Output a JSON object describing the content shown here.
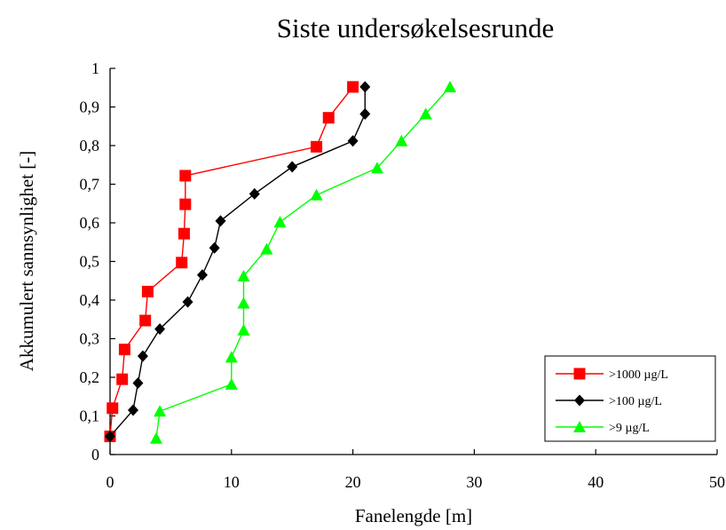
{
  "chart_data": {
    "type": "line",
    "title": "Siste undersøkelsesrunde",
    "xlabel": "Fanelengde [m]",
    "ylabel": "Akkumulert sannsynlighet [-]",
    "xlim": [
      0,
      50
    ],
    "ylim": [
      0,
      1
    ],
    "x_ticks": [
      "0",
      "10",
      "20",
      "30",
      "40",
      "50"
    ],
    "y_ticks": [
      "0",
      "0,1",
      "0,2",
      "0,3",
      "0,4",
      "0,5",
      "0,6",
      "0,7",
      "0,8",
      "0,9",
      "1"
    ],
    "grid": false,
    "legend_position": "bottom-right",
    "series": [
      {
        "name": ">1000 µg/L",
        "color": "#ff0000",
        "marker": "square",
        "points": [
          [
            0,
            0.047
          ],
          [
            0.2,
            0.12
          ],
          [
            1,
            0.195
          ],
          [
            1.2,
            0.272
          ],
          [
            2.9,
            0.347
          ],
          [
            3.1,
            0.422
          ],
          [
            5.9,
            0.497
          ],
          [
            6.1,
            0.572
          ],
          [
            6.2,
            0.648
          ],
          [
            6.2,
            0.722
          ],
          [
            17,
            0.797
          ],
          [
            18,
            0.872
          ],
          [
            20,
            0.952
          ]
        ]
      },
      {
        "name": ">100 µg/L",
        "color": "#000000",
        "marker": "diamond",
        "points": [
          [
            0,
            0.047
          ],
          [
            1.9,
            0.115
          ],
          [
            2.3,
            0.185
          ],
          [
            2.7,
            0.255
          ],
          [
            4.1,
            0.325
          ],
          [
            6.4,
            0.395
          ],
          [
            7.6,
            0.465
          ],
          [
            8.6,
            0.535
          ],
          [
            9.1,
            0.605
          ],
          [
            11.9,
            0.675
          ],
          [
            15,
            0.745
          ],
          [
            20,
            0.812
          ],
          [
            21,
            0.882
          ],
          [
            21,
            0.952
          ]
        ]
      },
      {
        "name": ">9 µg/L",
        "color": "#00ff00",
        "marker": "triangle",
        "points": [
          [
            3.8,
            0.042
          ],
          [
            4.1,
            0.112
          ],
          [
            10,
            0.182
          ],
          [
            10,
            0.252
          ],
          [
            11,
            0.322
          ],
          [
            11,
            0.392
          ],
          [
            11,
            0.462
          ],
          [
            12.9,
            0.532
          ],
          [
            14,
            0.602
          ],
          [
            17,
            0.672
          ],
          [
            22,
            0.742
          ],
          [
            24,
            0.812
          ],
          [
            26,
            0.882
          ],
          [
            28,
            0.952
          ]
        ]
      }
    ]
  }
}
